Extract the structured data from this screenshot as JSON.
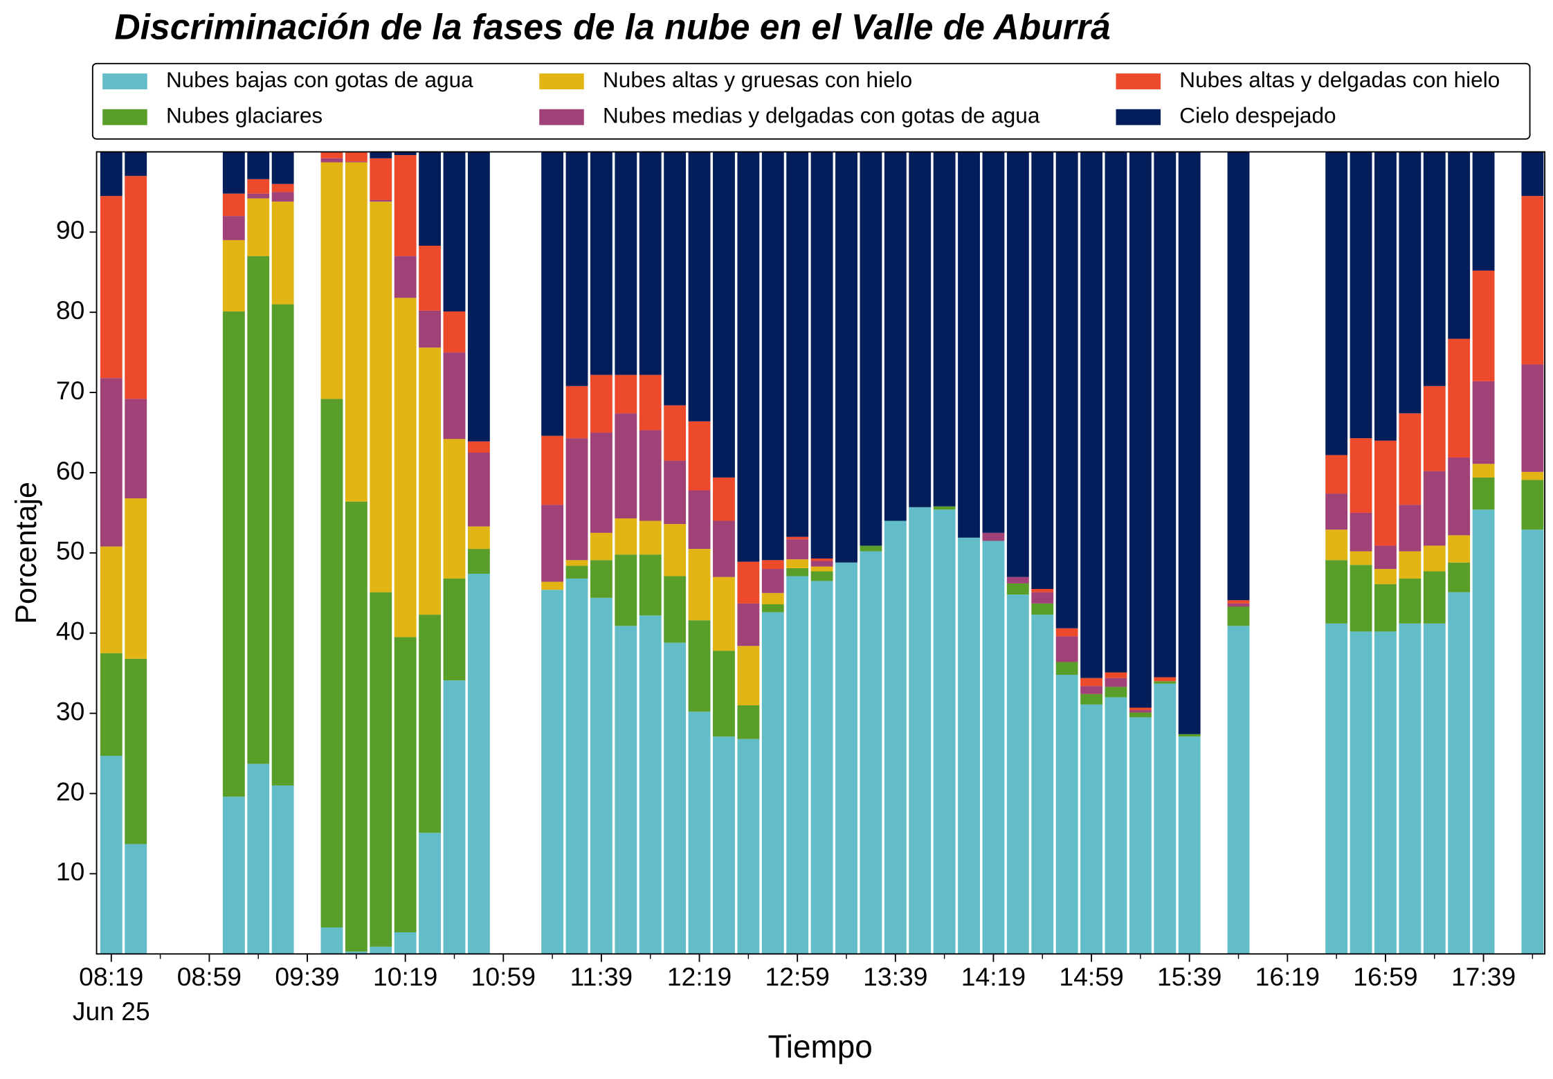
{
  "chart_data": {
    "type": "stacked_bar",
    "title": "Discriminación de la fases de la nube en el Valle de Aburrá",
    "x_label": "Tiempo",
    "y_label": "Porcentaje",
    "x_date_label": "Jun 25",
    "legend": "top",
    "x": [
      "08:19",
      "08:29",
      "09:09",
      "09:19",
      "09:29",
      "09:49",
      "09:59",
      "10:09",
      "10:19",
      "10:29",
      "10:39",
      "10:49",
      "11:19",
      "11:29",
      "11:39",
      "11:49",
      "11:59",
      "12:09",
      "12:19",
      "12:29",
      "12:39",
      "12:49",
      "12:59",
      "13:09",
      "13:19",
      "13:29",
      "13:39",
      "13:49",
      "13:59",
      "14:09",
      "14:19",
      "14:29",
      "14:39",
      "14:49",
      "14:59",
      "15:09",
      "15:19",
      "15:29",
      "15:39",
      "15:59",
      "16:39",
      "16:49",
      "16:59",
      "17:09",
      "17:19",
      "17:29",
      "17:39",
      "17:59"
    ],
    "xlim": [
      "08:13",
      "18:04"
    ],
    "xticks": [
      "08:19",
      "08:59",
      "09:39",
      "10:19",
      "10:59",
      "11:39",
      "12:19",
      "12:59",
      "13:39",
      "14:19",
      "14:59",
      "15:39",
      "16:19",
      "16:59",
      "17:39"
    ],
    "xminorticks": [
      "08:39",
      "09:19",
      "09:59",
      "10:39",
      "11:19",
      "11:59",
      "12:39",
      "13:19",
      "13:59",
      "14:39",
      "15:19",
      "15:59",
      "16:39",
      "17:19",
      "17:59"
    ],
    "ylim": [
      0,
      100
    ],
    "yticks": [
      10,
      20,
      30,
      40,
      50,
      60,
      70,
      80,
      90
    ],
    "series": [
      {
        "name": "Nubes bajas con gotas de agua",
        "color": "#63bdc9",
        "values": [
          24.7,
          13.7,
          19.6,
          23.7,
          21.0,
          3.3,
          0.3,
          0.9,
          2.7,
          15.1,
          34.1,
          47.4,
          45.4,
          46.8,
          44.4,
          40.9,
          42.2,
          38.8,
          30.2,
          27.1,
          26.8,
          42.6,
          47.1,
          46.5,
          48.8,
          50.2,
          54.0,
          55.7,
          55.4,
          51.9,
          51.5,
          44.8,
          42.3,
          34.8,
          31.1,
          32.0,
          29.5,
          33.7,
          27.1,
          40.9,
          41.2,
          40.2,
          40.2,
          41.2,
          41.2,
          45.1,
          55.4,
          52.9
        ]
      },
      {
        "name": "Nubes glaciares",
        "color": "#5a9e2a",
        "values": [
          12.8,
          23.1,
          60.5,
          63.3,
          60.0,
          65.9,
          56.1,
          44.2,
          36.8,
          27.2,
          12.7,
          3.1,
          0,
          1.6,
          4.7,
          8.9,
          7.6,
          8.3,
          11.4,
          10.7,
          4.2,
          1.0,
          1.0,
          1.2,
          0,
          0.7,
          0,
          0,
          0.4,
          0,
          0,
          1.4,
          1.4,
          1.6,
          1.3,
          1.3,
          0.6,
          0.3,
          0.3,
          2.4,
          7.9,
          8.3,
          5.9,
          5.6,
          6.5,
          3.7,
          4.0,
          6.2
        ]
      },
      {
        "name": "Nubes altas y gruesas con hielo",
        "color": "#e2b514",
        "values": [
          13.3,
          20.0,
          8.9,
          7.2,
          12.8,
          29.5,
          42.3,
          48.7,
          42.3,
          33.3,
          17.4,
          2.8,
          1.0,
          0.7,
          3.4,
          4.5,
          4.2,
          6.5,
          8.9,
          9.2,
          7.4,
          1.4,
          1.1,
          0.6,
          0,
          0,
          0,
          0,
          0,
          0,
          0,
          0,
          0,
          0,
          0,
          0,
          0,
          0,
          0,
          0,
          3.8,
          1.7,
          1.9,
          3.4,
          3.2,
          3.4,
          1.7,
          1.0
        ]
      },
      {
        "name": "Nubes medias y delgadas con gotas de agua",
        "color": "#a04277",
        "values": [
          21.0,
          12.4,
          3.0,
          0.6,
          1.2,
          0.5,
          0.1,
          0.2,
          5.2,
          4.6,
          10.8,
          9.2,
          9.6,
          15.2,
          12.5,
          13.1,
          11.3,
          7.9,
          7.3,
          7.0,
          5.3,
          3.0,
          2.5,
          0.7,
          0,
          0,
          0,
          0,
          0,
          0,
          1.0,
          0.8,
          1.4,
          3.2,
          1.0,
          1.1,
          0.3,
          0,
          0,
          0.4,
          4.5,
          4.8,
          2.9,
          5.8,
          9.3,
          9.7,
          10.3,
          13.4
        ]
      },
      {
        "name": "Nubes altas y delgadas con hielo",
        "color": "#ec4a2b",
        "values": [
          22.7,
          27.8,
          2.8,
          1.8,
          1.0,
          0.8,
          1.2,
          5.2,
          12.6,
          8.1,
          5.1,
          1.4,
          8.6,
          6.5,
          7.2,
          4.8,
          6.9,
          6.9,
          8.6,
          5.4,
          5.2,
          1.1,
          0.3,
          0.3,
          0,
          0,
          0,
          0,
          0,
          0,
          0,
          0,
          0.4,
          1.0,
          1.0,
          0.7,
          0.3,
          0.5,
          0,
          0.4,
          4.8,
          9.3,
          13.1,
          11.4,
          10.6,
          14.8,
          13.8,
          21.0
        ]
      },
      {
        "name": "Cielo despejado",
        "color": "#041e5c",
        "values": [
          5.5,
          3.0,
          5.2,
          3.4,
          4.0,
          0,
          0,
          0.8,
          0.4,
          11.7,
          19.9,
          36.1,
          35.4,
          29.2,
          27.8,
          27.8,
          27.8,
          31.6,
          33.6,
          40.6,
          51.1,
          50.9,
          48.0,
          50.7,
          51.2,
          49.1,
          46.0,
          44.3,
          44.2,
          48.1,
          47.5,
          53.0,
          54.5,
          59.4,
          65.6,
          64.9,
          69.3,
          65.5,
          72.6,
          55.9,
          37.8,
          35.7,
          36.0,
          32.6,
          29.2,
          23.3,
          14.8,
          5.5
        ]
      }
    ]
  }
}
